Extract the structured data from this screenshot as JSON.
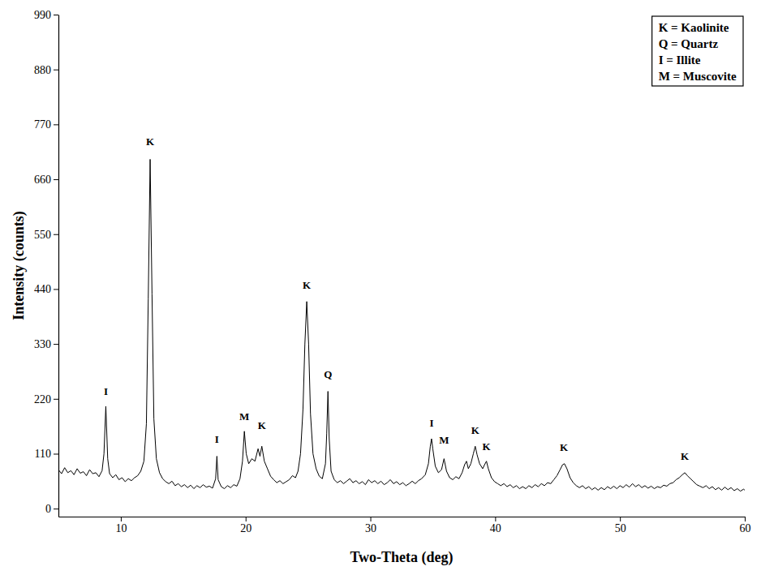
{
  "chart_data": {
    "type": "line",
    "x_label": "Two-Theta (deg)",
    "y_label": "Intensity (counts)",
    "xlim": [
      5,
      60
    ],
    "xticks": [
      10,
      20,
      30,
      40,
      50,
      60
    ],
    "ylim": [
      -16,
      990
    ],
    "yticks": [
      0,
      110,
      220,
      330,
      440,
      550,
      660,
      770,
      880,
      990
    ],
    "grid": false,
    "legend": "upper right",
    "legend_entries": [
      "K = Kaolinite",
      "Q = Quartz",
      "I = Illite",
      "M = Muscovite"
    ],
    "x": [
      5.0,
      5.25,
      5.5,
      5.75,
      6.0,
      6.25,
      6.5,
      6.75,
      7.0,
      7.25,
      7.5,
      7.75,
      8.0,
      8.25,
      8.5,
      8.65,
      8.8,
      8.95,
      9.1,
      9.35,
      9.6,
      9.85,
      10.1,
      10.35,
      10.6,
      10.85,
      11.1,
      11.35,
      11.6,
      11.85,
      12.05,
      12.2,
      12.35,
      12.5,
      12.65,
      12.85,
      13.1,
      13.35,
      13.6,
      13.85,
      14.1,
      14.35,
      14.6,
      14.85,
      15.1,
      15.35,
      15.6,
      15.85,
      16.1,
      16.35,
      16.6,
      16.85,
      17.1,
      17.35,
      17.6,
      17.7,
      17.8,
      18.05,
      18.3,
      18.55,
      18.8,
      19.05,
      19.3,
      19.55,
      19.75,
      19.9,
      20.05,
      20.25,
      20.5,
      20.75,
      21.0,
      21.15,
      21.3,
      21.5,
      21.75,
      22.0,
      22.25,
      22.5,
      22.75,
      23.0,
      23.25,
      23.5,
      23.75,
      24.0,
      24.2,
      24.4,
      24.6,
      24.75,
      24.9,
      25.05,
      25.2,
      25.4,
      25.65,
      25.9,
      26.15,
      26.4,
      26.5,
      26.6,
      26.7,
      26.85,
      27.1,
      27.35,
      27.6,
      27.85,
      28.1,
      28.35,
      28.6,
      28.85,
      29.1,
      29.35,
      29.6,
      29.85,
      30.1,
      30.35,
      30.6,
      30.85,
      31.1,
      31.35,
      31.6,
      31.85,
      32.1,
      32.35,
      32.6,
      32.85,
      33.1,
      33.35,
      33.6,
      33.85,
      34.1,
      34.4,
      34.65,
      34.8,
      34.9,
      35.0,
      35.2,
      35.45,
      35.7,
      35.9,
      36.1,
      36.35,
      36.6,
      36.85,
      37.1,
      37.35,
      37.55,
      37.7,
      37.85,
      38.05,
      38.25,
      38.4,
      38.55,
      38.75,
      39.0,
      39.15,
      39.3,
      39.45,
      39.7,
      39.95,
      40.2,
      40.45,
      40.7,
      40.95,
      41.2,
      41.45,
      41.7,
      41.95,
      42.2,
      42.45,
      42.7,
      42.95,
      43.2,
      43.45,
      43.7,
      43.95,
      44.2,
      44.45,
      44.7,
      44.95,
      45.2,
      45.4,
      45.55,
      45.75,
      46.0,
      46.25,
      46.5,
      46.75,
      47.0,
      47.25,
      47.5,
      47.75,
      48.0,
      48.25,
      48.5,
      48.75,
      49.0,
      49.25,
      49.5,
      49.75,
      50.0,
      50.25,
      50.5,
      50.75,
      51.0,
      51.25,
      51.5,
      51.75,
      52.0,
      52.25,
      52.5,
      52.75,
      53.0,
      53.25,
      53.5,
      53.75,
      54.0,
      54.25,
      54.5,
      54.75,
      55.0,
      55.2,
      55.4,
      55.65,
      55.9,
      56.15,
      56.4,
      56.65,
      56.9,
      57.15,
      57.4,
      57.65,
      57.9,
      58.15,
      58.4,
      58.65,
      58.9,
      59.15,
      59.4,
      59.65,
      59.9,
      60.0
    ],
    "series": [
      {
        "color": "#000000",
        "values": [
          78,
          70,
          82,
          72,
          76,
          68,
          80,
          71,
          74,
          66,
          78,
          70,
          72,
          64,
          76,
          110,
          205,
          100,
          70,
          62,
          68,
          58,
          62,
          54,
          60,
          56,
          62,
          66,
          75,
          95,
          170,
          420,
          700,
          430,
          180,
          100,
          72,
          60,
          54,
          50,
          55,
          46,
          50,
          44,
          48,
          42,
          47,
          40,
          46,
          42,
          48,
          43,
          45,
          41,
          60,
          105,
          58,
          44,
          40,
          46,
          42,
          48,
          45,
          60,
          95,
          155,
          110,
          90,
          100,
          95,
          120,
          105,
          125,
          95,
          80,
          65,
          58,
          52,
          56,
          50,
          54,
          58,
          66,
          62,
          75,
          110,
          200,
          330,
          415,
          330,
          190,
          110,
          80,
          65,
          60,
          90,
          150,
          235,
          140,
          75,
          58,
          52,
          56,
          50,
          55,
          60,
          52,
          56,
          50,
          54,
          48,
          58,
          52,
          56,
          50,
          55,
          48,
          52,
          58,
          50,
          54,
          48,
          52,
          46,
          50,
          55,
          50,
          56,
          60,
          68,
          90,
          125,
          140,
          120,
          85,
          72,
          78,
          100,
          75,
          62,
          58,
          64,
          60,
          72,
          88,
          95,
          80,
          90,
          110,
          125,
          108,
          90,
          80,
          88,
          95,
          80,
          62,
          54,
          50,
          46,
          50,
          44,
          48,
          42,
          46,
          40,
          44,
          40,
          46,
          42,
          48,
          44,
          50,
          46,
          52,
          50,
          58,
          66,
          78,
          88,
          90,
          80,
          62,
          52,
          46,
          42,
          46,
          40,
          44,
          38,
          42,
          37,
          42,
          38,
          44,
          40,
          45,
          40,
          46,
          42,
          48,
          43,
          50,
          44,
          48,
          42,
          46,
          41,
          45,
          40,
          44,
          42,
          47,
          45,
          50,
          52,
          58,
          62,
          68,
          72,
          66,
          60,
          54,
          48,
          45,
          42,
          46,
          40,
          44,
          38,
          42,
          37,
          43,
          38,
          42,
          36,
          40,
          35,
          39,
          37
        ]
      }
    ],
    "annotations": [
      {
        "text": "I",
        "x": 8.8,
        "y": 228
      },
      {
        "text": "K",
        "x": 12.35,
        "y": 728
      },
      {
        "text": "I",
        "x": 17.7,
        "y": 132
      },
      {
        "text": "M",
        "x": 19.9,
        "y": 178
      },
      {
        "text": "K",
        "x": 21.3,
        "y": 160
      },
      {
        "text": "K",
        "x": 24.9,
        "y": 440
      },
      {
        "text": "Q",
        "x": 26.6,
        "y": 262
      },
      {
        "text": "I",
        "x": 34.9,
        "y": 165
      },
      {
        "text": "M",
        "x": 35.9,
        "y": 130
      },
      {
        "text": "K",
        "x": 38.4,
        "y": 150
      },
      {
        "text": "K",
        "x": 39.3,
        "y": 118
      },
      {
        "text": "K",
        "x": 45.5,
        "y": 115
      },
      {
        "text": "K",
        "x": 55.2,
        "y": 98
      }
    ]
  }
}
